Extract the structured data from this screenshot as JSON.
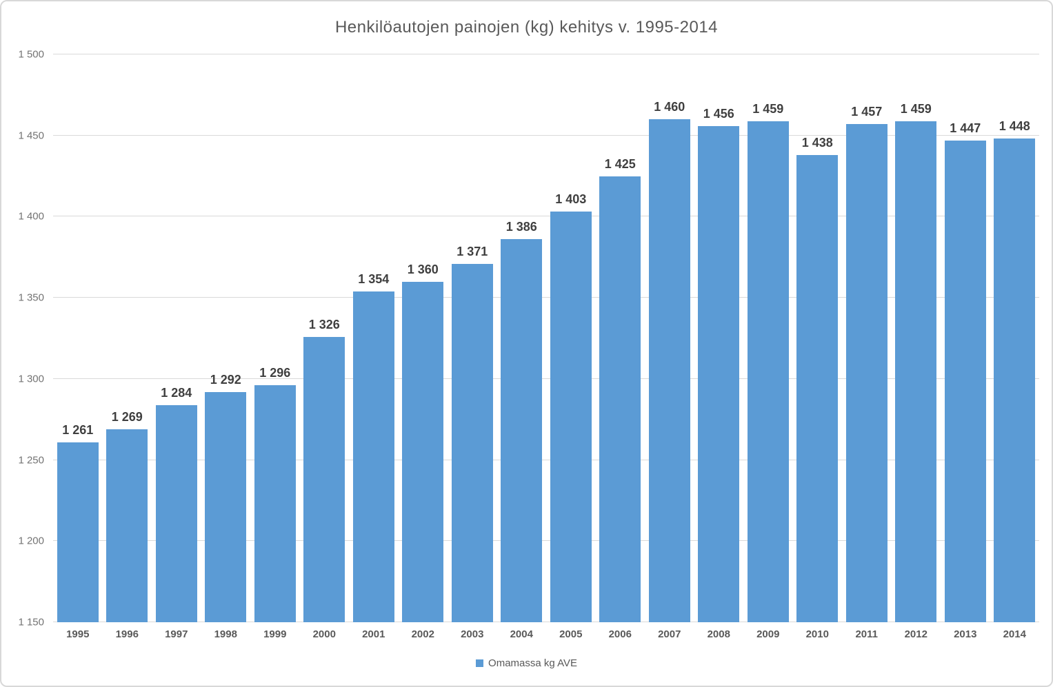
{
  "chart": {
    "title": "Henkilöautojen painojen (kg) kehitys v. 1995-2014",
    "legend": {
      "label": "Omamassa kg AVE",
      "marker_color": "#5B9BD5"
    }
  },
  "chart_data": {
    "type": "bar",
    "title": "Henkilöautojen painojen (kg) kehitys v. 1995-2014",
    "categories": [
      "1995",
      "1996",
      "1997",
      "1998",
      "1999",
      "2000",
      "2001",
      "2002",
      "2003",
      "2004",
      "2005",
      "2006",
      "2007",
      "2008",
      "2009",
      "2010",
      "2011",
      "2012",
      "2013",
      "2014"
    ],
    "series": [
      {
        "name": "Omamassa kg AVE",
        "values": [
          1261,
          1269,
          1284,
          1292,
          1296,
          1326,
          1354,
          1360,
          1371,
          1386,
          1403,
          1425,
          1460,
          1456,
          1459,
          1438,
          1457,
          1459,
          1447,
          1448
        ]
      }
    ],
    "data_labels": [
      "1 261",
      "1 269",
      "1 284",
      "1 292",
      "1 296",
      "1 326",
      "1 354",
      "1 360",
      "1 371",
      "1 386",
      "1 403",
      "1 425",
      "1 460",
      "1 456",
      "1 459",
      "1 438",
      "1 457",
      "1 459",
      "1 447",
      "1 448"
    ],
    "xlabel": "",
    "ylabel": "",
    "ylim": [
      1150,
      1500
    ],
    "ytick_step": 50,
    "ytick_labels": [
      "1 150",
      "1 200",
      "1 250",
      "1 300",
      "1 350",
      "1 400",
      "1 450",
      "1 500"
    ],
    "grid": true,
    "legend_position": "bottom",
    "bar_color": "#5B9BD5",
    "gridline_color": "#D9D9D9"
  }
}
